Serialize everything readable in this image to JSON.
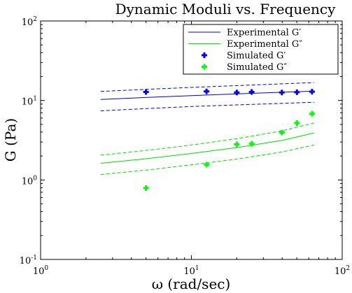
{
  "chart_data": {
    "type": "line",
    "title": "Dynamic Moduli vs. Frequency",
    "xlabel": "ω (rad/sec)",
    "ylabel": "G (Pa)",
    "xscale": "log",
    "yscale": "log",
    "xlim": [
      1,
      100
    ],
    "ylim": [
      0.1,
      100
    ],
    "xticks": [
      {
        "value": 1,
        "base": "10",
        "exp": "0"
      },
      {
        "value": 10,
        "base": "10",
        "exp": "1"
      },
      {
        "value": 100,
        "base": "10",
        "exp": "2"
      }
    ],
    "yticks": [
      {
        "value": 0.1,
        "base": "10",
        "exp": "-1"
      },
      {
        "value": 1,
        "base": "10",
        "exp": "0"
      },
      {
        "value": 10,
        "base": "10",
        "exp": "1"
      },
      {
        "value": 100,
        "base": "10",
        "exp": "2"
      }
    ],
    "grid": false,
    "legend_position": "top-right",
    "series": [
      {
        "name": "Experimental G′",
        "kind": "line",
        "color": "#0000dd",
        "x": [
          2.5,
          5,
          10,
          20,
          40,
          65
        ],
        "y": [
          10.3,
          10.9,
          11.5,
          12.1,
          12.7,
          13.1
        ],
        "lower": [
          7.4,
          7.9,
          8.4,
          8.8,
          9.2,
          9.5
        ],
        "upper": [
          13.0,
          13.8,
          14.6,
          15.4,
          16.2,
          16.8
        ]
      },
      {
        "name": "Experimental G″",
        "kind": "line",
        "color": "#00dd00",
        "x": [
          2.5,
          5,
          10,
          20,
          40,
          65
        ],
        "y": [
          1.62,
          1.85,
          2.15,
          2.55,
          3.15,
          3.9
        ],
        "lower": [
          1.17,
          1.33,
          1.55,
          1.83,
          2.25,
          2.75
        ],
        "upper": [
          2.05,
          2.35,
          2.75,
          3.3,
          4.15,
          5.2
        ]
      },
      {
        "name": "Simulated G′",
        "kind": "marker",
        "color": "#0000ff",
        "x": [
          5,
          12.6,
          20,
          25.1,
          39.8,
          50.1,
          63.1
        ],
        "y": [
          12.8,
          13.0,
          12.6,
          12.8,
          12.6,
          12.7,
          12.9
        ]
      },
      {
        "name": "Simulated G″",
        "kind": "marker",
        "color": "#00ff00",
        "x": [
          5,
          12.6,
          20,
          25.1,
          39.8,
          50.1,
          63.1
        ],
        "y": [
          0.79,
          1.56,
          2.8,
          2.85,
          3.95,
          5.2,
          6.8
        ]
      }
    ]
  }
}
